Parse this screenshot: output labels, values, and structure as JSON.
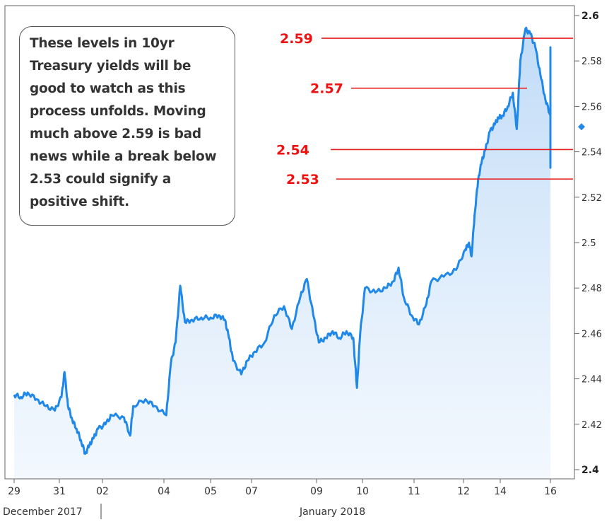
{
  "annotation": "These levels in 10yr Treasury yields will be good to watch as this process unfolds.  Moving much above 2.59 is bad news while a break below 2.53 could signify a positive shift.",
  "chart_data": {
    "type": "area",
    "title": "",
    "xlabel": "",
    "ylabel": "",
    "ylim": [
      2.4,
      2.6
    ],
    "y_ticks": [
      "2.6",
      "2.58",
      "2.56",
      "2.54",
      "2.52",
      "2.5",
      "2.48",
      "2.46",
      "2.44",
      "2.42",
      "2.4"
    ],
    "x_ticks": [
      "29",
      "31",
      "02",
      "04",
      "05",
      "07",
      "09",
      "10",
      "11",
      "12",
      "14",
      "16"
    ],
    "x_groups": [
      "December 2017",
      "January 2018"
    ],
    "series": [
      {
        "color": "#1f88e8",
        "points": [
          [
            0,
            2.433
          ],
          [
            0.15,
            2.432
          ],
          [
            0.3,
            2.434
          ],
          [
            0.5,
            2.431
          ],
          [
            0.7,
            2.428
          ],
          [
            0.9,
            2.426
          ],
          [
            1.05,
            2.432
          ],
          [
            1.12,
            2.443
          ],
          [
            1.2,
            2.428
          ],
          [
            1.3,
            2.422
          ],
          [
            1.4,
            2.418
          ],
          [
            1.5,
            2.413
          ],
          [
            1.6,
            2.407
          ],
          [
            1.7,
            2.411
          ],
          [
            1.8,
            2.414
          ],
          [
            1.9,
            2.418
          ],
          [
            2.05,
            2.42
          ],
          [
            2.15,
            2.424
          ],
          [
            2.35,
            2.423
          ],
          [
            2.45,
            2.415
          ],
          [
            2.5,
            2.428
          ],
          [
            2.7,
            2.431
          ],
          [
            2.85,
            2.428
          ],
          [
            3.05,
            2.424
          ],
          [
            3.15,
            2.447
          ],
          [
            3.25,
            2.456
          ],
          [
            3.35,
            2.481
          ],
          [
            3.45,
            2.465
          ],
          [
            3.6,
            2.466
          ],
          [
            3.8,
            2.467
          ],
          [
            4.0,
            2.467
          ],
          [
            4.2,
            2.468
          ],
          [
            4.35,
            2.466
          ],
          [
            4.45,
            2.458
          ],
          [
            4.55,
            2.448
          ],
          [
            4.75,
            2.442
          ],
          [
            4.9,
            2.448
          ],
          [
            5.05,
            2.452
          ],
          [
            5.2,
            2.456
          ],
          [
            5.35,
            2.468
          ],
          [
            5.5,
            2.472
          ],
          [
            5.62,
            2.462
          ],
          [
            5.75,
            2.476
          ],
          [
            5.85,
            2.484
          ],
          [
            5.95,
            2.468
          ],
          [
            6.05,
            2.456
          ],
          [
            6.2,
            2.458
          ],
          [
            6.35,
            2.461
          ],
          [
            6.5,
            2.458
          ],
          [
            6.65,
            2.461
          ],
          [
            6.8,
            2.458
          ],
          [
            6.88,
            2.436
          ],
          [
            6.95,
            2.46
          ],
          [
            7.05,
            2.48
          ],
          [
            7.25,
            2.478
          ],
          [
            7.45,
            2.48
          ],
          [
            7.6,
            2.483
          ],
          [
            7.7,
            2.489
          ],
          [
            7.8,
            2.476
          ],
          [
            7.95,
            2.468
          ],
          [
            8.1,
            2.464
          ],
          [
            8.25,
            2.473
          ],
          [
            8.35,
            2.483
          ],
          [
            8.6,
            2.485
          ],
          [
            8.85,
            2.488
          ],
          [
            9.05,
            2.497
          ],
          [
            9.15,
            2.5
          ],
          [
            9.22,
            2.494
          ],
          [
            9.3,
            2.512
          ],
          [
            9.4,
            2.528
          ],
          [
            9.5,
            2.536
          ],
          [
            9.6,
            2.541
          ],
          [
            9.72,
            2.549
          ],
          [
            9.85,
            2.552
          ],
          [
            9.95,
            2.555
          ],
          [
            10.05,
            2.556
          ],
          [
            10.15,
            2.56
          ],
          [
            10.25,
            2.566
          ],
          [
            10.33,
            2.55
          ],
          [
            10.4,
            2.58
          ],
          [
            10.5,
            2.594
          ],
          [
            10.6,
            2.592
          ],
          [
            10.7,
            2.586
          ],
          [
            10.8,
            2.574
          ],
          [
            10.9,
            2.563
          ],
          [
            11.0,
            2.556
          ],
          [
            11.1,
            2.552
          ],
          [
            11.2,
            2.545
          ],
          [
            11.3,
            2.537
          ],
          [
            11.4,
            2.533
          ],
          [
            11.5,
            2.541
          ],
          [
            11.6,
            2.544
          ],
          [
            11.7,
            2.538
          ],
          [
            11.8,
            2.548
          ],
          [
            11.9,
            2.567
          ],
          [
            12.0,
            2.562
          ],
          [
            12.1,
            2.555
          ],
          [
            12.2,
            2.546
          ],
          [
            12.3,
            2.534
          ],
          [
            12.4,
            2.541
          ],
          [
            12.5,
            2.546
          ],
          [
            12.6,
            2.548
          ],
          [
            12.7,
            2.546
          ],
          [
            12.8,
            2.549
          ],
          [
            12.9,
            2.552
          ],
          [
            13.0,
            2.555
          ],
          [
            13.1,
            2.547
          ],
          [
            13.2,
            2.545
          ],
          [
            13.3,
            2.586
          ],
          [
            13.4,
            2.575
          ],
          [
            13.5,
            2.566
          ],
          [
            13.6,
            2.562
          ],
          [
            13.7,
            2.55
          ],
          [
            13.78,
            2.548
          ],
          [
            13.85,
            2.552
          ]
        ]
      }
    ],
    "levels": [
      {
        "label": "2.59",
        "value": 2.59
      },
      {
        "label": "2.57",
        "value": 2.568
      },
      {
        "label": "2.54",
        "value": 2.541
      },
      {
        "label": "2.53",
        "value": 2.528
      }
    ],
    "last_value": 2.551
  }
}
